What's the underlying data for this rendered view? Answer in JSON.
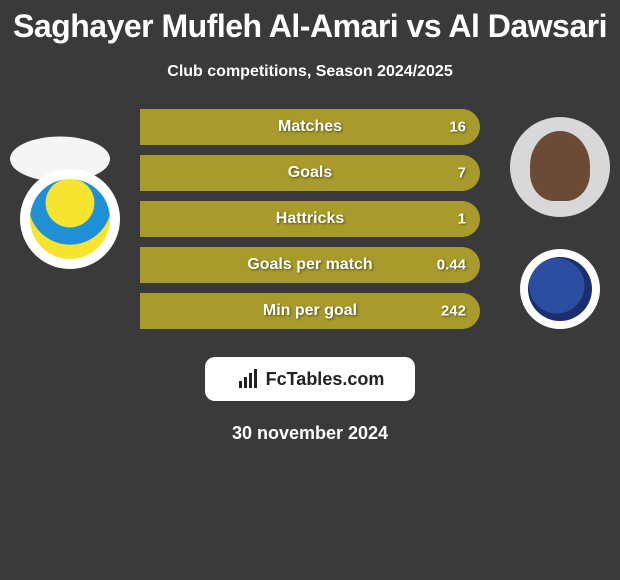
{
  "title": "Saghayer Mufleh Al-Amari vs Al Dawsari",
  "subtitle": "Club competitions, Season 2024/2025",
  "date": "30 november 2024",
  "logo_text": "FcTables.com",
  "colors": {
    "player1_bar": "#a89b2b",
    "player2_bar": "#a89b2b",
    "bar_bg": "#a89b2b",
    "background": "#3a3a3a"
  },
  "stats": [
    {
      "label": "Matches",
      "left_pct": 0,
      "right_pct": 100,
      "right_value": "16"
    },
    {
      "label": "Goals",
      "left_pct": 0,
      "right_pct": 100,
      "right_value": "7"
    },
    {
      "label": "Hattricks",
      "left_pct": 0,
      "right_pct": 100,
      "right_value": "1"
    },
    {
      "label": "Goals per match",
      "left_pct": 0,
      "right_pct": 100,
      "right_value": "0.44"
    },
    {
      "label": "Min per goal",
      "left_pct": 0,
      "right_pct": 100,
      "right_value": "242"
    }
  ]
}
